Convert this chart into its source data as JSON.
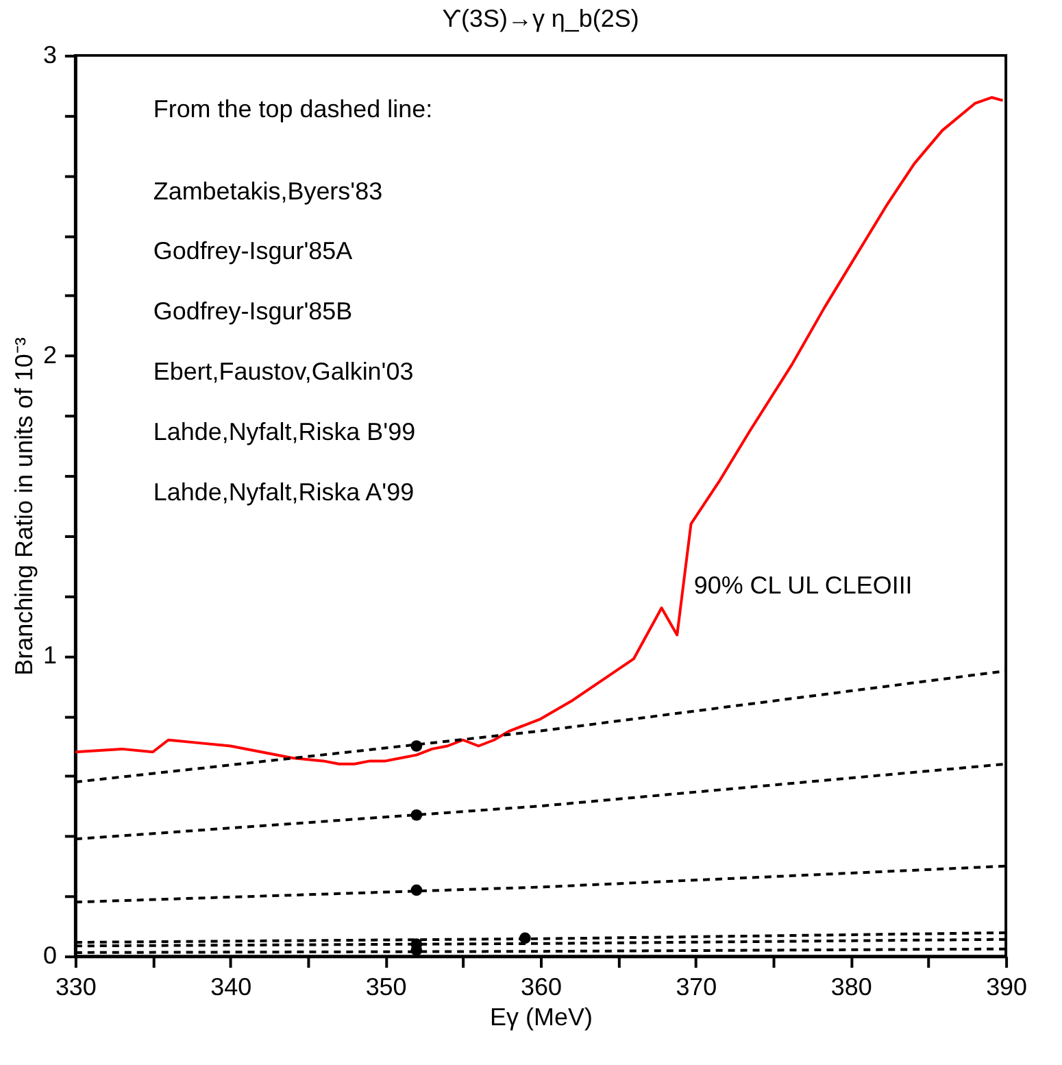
{
  "chart_data": {
    "type": "line",
    "title": "ϒ(3S)→γ η_b(2S)",
    "xlabel": "Eγ (MeV)",
    "ylabel": "Branching Ratio in units of 10⁻³",
    "xlim": [
      330,
      390
    ],
    "xticks": [
      330,
      {
        "value": 335,
        "label": null
      },
      340,
      {
        "value": 345,
        "label": null
      },
      350,
      {
        "value": 355,
        "label": null
      },
      360,
      {
        "value": 365,
        "label": null
      },
      370,
      {
        "value": 375,
        "label": null
      },
      380,
      {
        "value": 385,
        "label": null
      },
      390
    ],
    "ylim": [
      0,
      3
    ],
    "yticks": [
      0,
      {
        "value": 0.2,
        "label": null
      },
      {
        "value": 0.4,
        "label": null
      },
      {
        "value": 0.6,
        "label": null
      },
      {
        "value": 0.8,
        "label": null
      },
      1,
      {
        "value": 1.2,
        "label": null
      },
      {
        "value": 1.4,
        "label": null
      },
      {
        "value": 1.6,
        "label": null
      },
      {
        "value": 1.8,
        "label": null
      },
      2,
      {
        "value": 2.2,
        "label": null
      },
      {
        "value": 2.4,
        "label": null
      },
      {
        "value": 2.6,
        "label": null
      },
      {
        "value": 2.8,
        "label": null
      },
      3
    ],
    "grid": false,
    "annotations": [
      "From the top dashed line:",
      "Zambetakis,Byers'83",
      "Godfrey-Isgur'85A",
      "Godfrey-Isgur'85B",
      "Ebert,Faustov,Galkin'03",
      "Lahde,Nyfalt,Riska B'99",
      "Lahde,Nyfalt,Riska A'99"
    ],
    "series": [
      {
        "name": "90% CL UL CLEOIII",
        "color": "#ff0000",
        "line_style": "solid",
        "marker": "none",
        "x": [
          330,
          333,
          335,
          336,
          338,
          340,
          342,
          344,
          346,
          347,
          348,
          349,
          350,
          351,
          352,
          353,
          354,
          355,
          356,
          357,
          358,
          360,
          362,
          364,
          366,
          367.8,
          368.8,
          369.7,
          371.5,
          373.5,
          376.2,
          378.3,
          380.3,
          382.3,
          384.1,
          385.9,
          388.0,
          389.1,
          389.8
        ],
        "values": [
          0.68,
          0.69,
          0.68,
          0.72,
          0.71,
          0.7,
          0.68,
          0.66,
          0.65,
          0.64,
          0.64,
          0.65,
          0.65,
          0.66,
          0.67,
          0.69,
          0.7,
          0.72,
          0.7,
          0.72,
          0.75,
          0.79,
          0.85,
          0.92,
          0.99,
          1.16,
          1.07,
          1.44,
          1.58,
          1.75,
          1.97,
          2.16,
          2.33,
          2.5,
          2.64,
          2.75,
          2.84,
          2.86,
          2.85
        ]
      },
      {
        "color": "#000000",
        "line_style": "dashed",
        "marker": "none",
        "x": [
          330,
          360,
          390
        ],
        "values": [
          0.58,
          0.75,
          0.95
        ]
      },
      {
        "color": "#000000",
        "line_style": "dashed",
        "marker": "none",
        "x": [
          330,
          360,
          390
        ],
        "values": [
          0.39,
          0.5,
          0.64
        ]
      },
      {
        "color": "#000000",
        "line_style": "dashed",
        "marker": "none",
        "x": [
          330,
          360,
          390
        ],
        "values": [
          0.18,
          0.23,
          0.3
        ]
      },
      {
        "color": "#000000",
        "line_style": "dashed",
        "marker": "none",
        "x": [
          330,
          360,
          390
        ],
        "values": [
          0.046,
          0.058,
          0.078
        ]
      },
      {
        "color": "#000000",
        "line_style": "dashed",
        "marker": "none",
        "x": [
          330,
          360,
          390
        ],
        "values": [
          0.034,
          0.042,
          0.056
        ]
      },
      {
        "color": "#000000",
        "line_style": "dashed",
        "marker": "none",
        "x": [
          330,
          360,
          390
        ],
        "values": [
          0.012,
          0.016,
          0.024
        ]
      },
      {
        "type": "scatter",
        "color": "#000000",
        "marker": "circle",
        "x": [
          352,
          352,
          352,
          352,
          352,
          359
        ],
        "values": [
          0.7,
          0.47,
          0.22,
          0.04,
          0.02,
          0.06
        ]
      }
    ]
  }
}
